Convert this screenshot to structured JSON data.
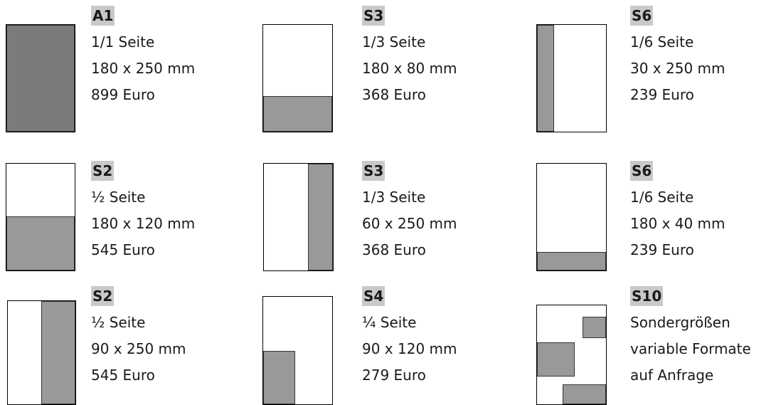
{
  "fill_color": "#999999",
  "formats": [
    {
      "code": "A1",
      "size": "1/1 Seite",
      "dimensions": "180 x 250 mm",
      "price": "899 Euro"
    },
    {
      "code": "S3",
      "size": "1/3 Seite",
      "dimensions": "180 x 80 mm",
      "price": "368 Euro"
    },
    {
      "code": "S6",
      "size": "1/6 Seite",
      "dimensions": "30 x 250 mm",
      "price": "239 Euro"
    },
    {
      "code": "S2",
      "size": "½ Seite",
      "dimensions": "180 x 120 mm",
      "price": "545 Euro"
    },
    {
      "code": "S3",
      "size": "1/3 Seite",
      "dimensions": "60 x 250 mm",
      "price": "368 Euro"
    },
    {
      "code": "S6",
      "size": "1/6 Seite",
      "dimensions": "180 x 40 mm",
      "price": "239 Euro"
    },
    {
      "code": "S2",
      "size": "½ Seite",
      "dimensions": "90 x 250 mm",
      "price": "545 Euro"
    },
    {
      "code": "S4",
      "size": "¼ Seite",
      "dimensions": "90 x 120 mm",
      "price": "279 Euro"
    },
    {
      "code": "S10",
      "size": "Sondergrößen",
      "dimensions": "variable Formate",
      "price": "auf Anfrage"
    }
  ]
}
